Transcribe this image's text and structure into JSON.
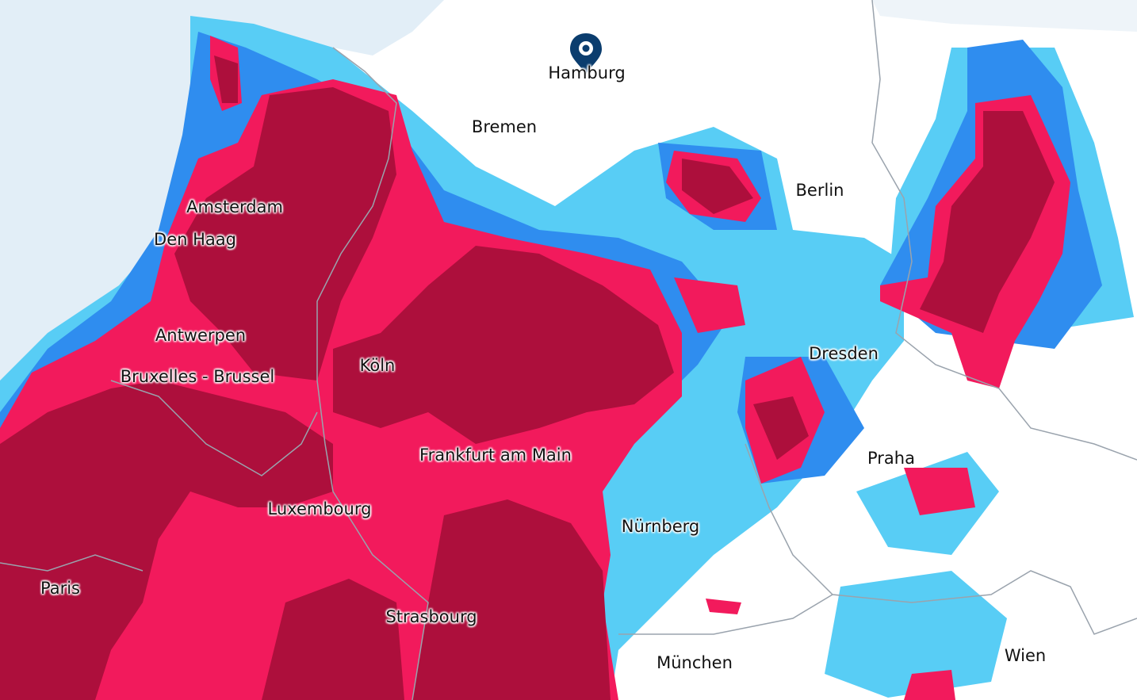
{
  "map": {
    "colors": {
      "sea": "#e2eef7",
      "land": "#ffffff",
      "light_rain": "#58cdf5",
      "moderate_rain": "#2f8def",
      "heavy_rain": "#f21a5c",
      "very_heavy_rain": "#ad0f3c",
      "border": "#9aa3ad",
      "marker": "#0b3d6e"
    },
    "marker": {
      "icon": "map-pin-icon",
      "city": "Hamburg"
    },
    "cities": [
      "Hamburg",
      "Bremen",
      "Berlin",
      "Amsterdam",
      "Den Haag",
      "Antwerpen",
      "Bruxelles - Brussel",
      "Köln",
      "Dresden",
      "Frankfurt am Main",
      "Praha",
      "Luxembourg",
      "Nürnberg",
      "Paris",
      "Strasbourg",
      "München",
      "Wien"
    ]
  }
}
